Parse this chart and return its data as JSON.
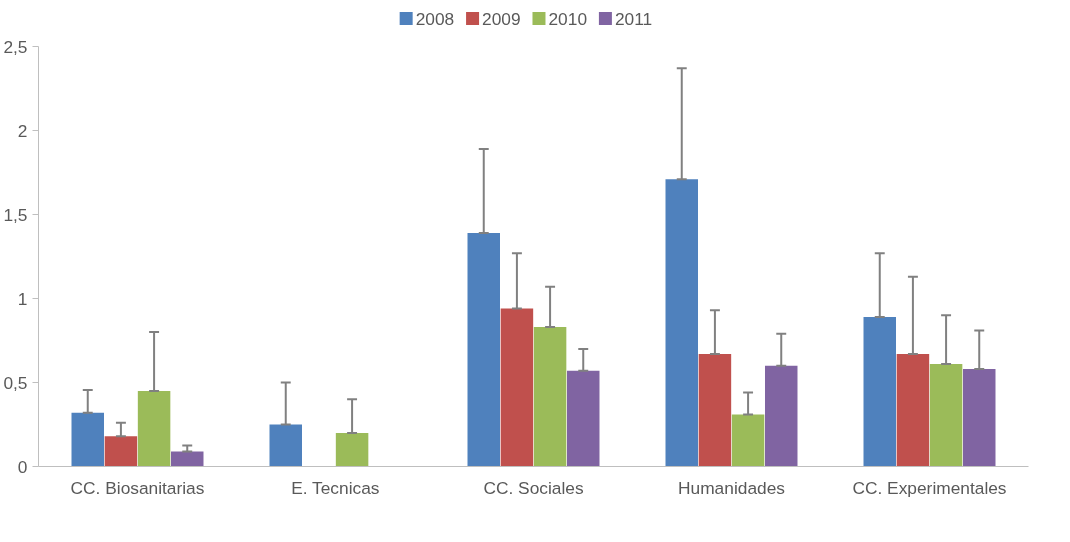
{
  "chart_data": {
    "type": "bar",
    "categories": [
      "CC. Biosanitarias",
      "E. Tecnicas",
      "CC. Sociales",
      "Humanidades",
      "CC. Experimentales"
    ],
    "ylim": [
      0,
      2.5
    ],
    "yticks": [
      0,
      {
        "value": 0.5,
        "label": "0,5"
      },
      1,
      {
        "value": 1.5,
        "label": "1,5"
      },
      2,
      {
        "value": 2.5,
        "label": "2,5"
      }
    ],
    "grid": false,
    "legend": "top",
    "series": [
      {
        "name": "2008",
        "color": "#4f81bd",
        "values": [
          0.32,
          0.25,
          1.39,
          1.71,
          0.89
        ],
        "errors": [
          [
            0.32,
            0.455
          ],
          [
            0.25,
            0.5
          ],
          [
            1.39,
            1.89
          ],
          [
            1.71,
            2.37
          ],
          [
            0.89,
            1.27
          ]
        ]
      },
      {
        "name": "2009",
        "color": "#c0504d",
        "values": [
          0.18,
          0,
          0.94,
          0.67,
          0.67
        ],
        "errors": [
          [
            0.18,
            0.26
          ],
          null,
          [
            0.94,
            1.27
          ],
          [
            0.67,
            0.93
          ],
          [
            0.67,
            1.13
          ]
        ]
      },
      {
        "name": "2010",
        "color": "#9bbb59",
        "values": [
          0.45,
          0.2,
          0.83,
          0.31,
          0.61
        ],
        "errors": [
          [
            0.45,
            0.8
          ],
          [
            0.2,
            0.4
          ],
          [
            0.83,
            1.07
          ],
          [
            0.31,
            0.44
          ],
          [
            0.61,
            0.9
          ]
        ]
      },
      {
        "name": "2011",
        "color": "#8064a2",
        "values": [
          0.09,
          0,
          0.57,
          0.6,
          0.58
        ],
        "errors": [
          [
            0.09,
            0.125
          ],
          null,
          [
            0.57,
            0.7
          ],
          [
            0.6,
            0.79
          ],
          [
            0.58,
            0.81
          ]
        ]
      }
    ]
  }
}
